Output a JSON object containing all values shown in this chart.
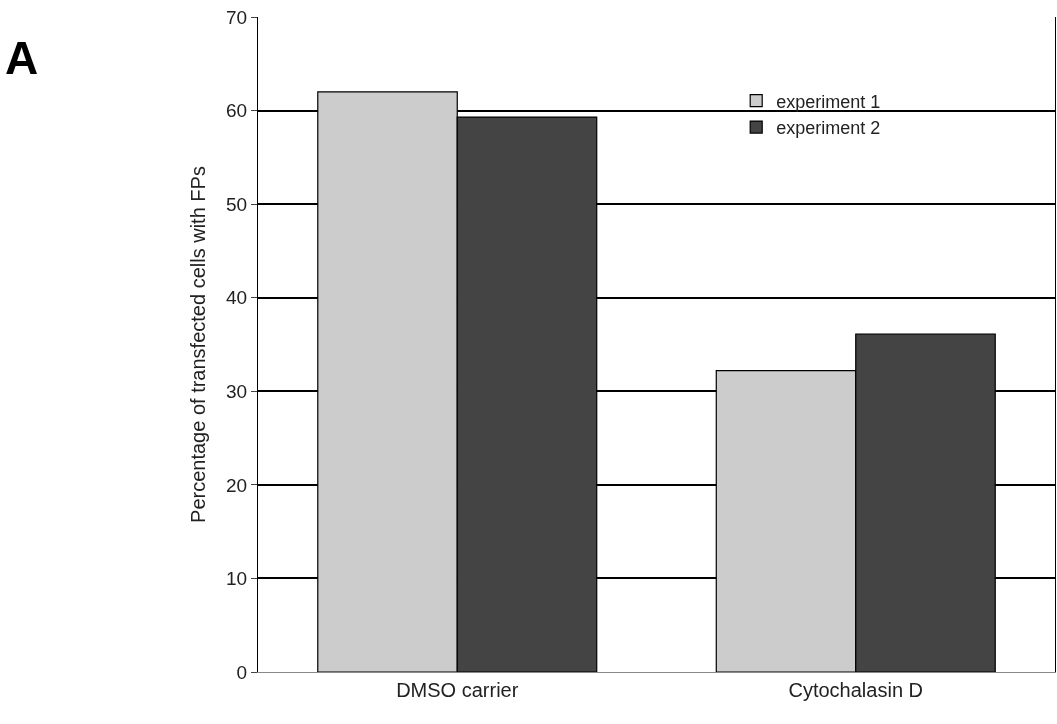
{
  "chart_data": {
    "type": "bar",
    "ylabel": "Percentage of transfected cells with FPs",
    "categories": [
      "DMSO carrier",
      "Cytochalasin D"
    ],
    "series": [
      {
        "name": "experiment 1",
        "color": "#cccccc",
        "values": [
          62,
          32.2
        ]
      },
      {
        "name": "experiment 2",
        "color": "#444444",
        "values": [
          59.3,
          36.1
        ]
      }
    ],
    "ylim": [
      0,
      70
    ],
    "yticks": [
      0,
      10,
      20,
      30,
      40,
      50,
      60,
      70
    ],
    "grid": "y",
    "legend": "top right",
    "annotations": [
      "A"
    ]
  }
}
